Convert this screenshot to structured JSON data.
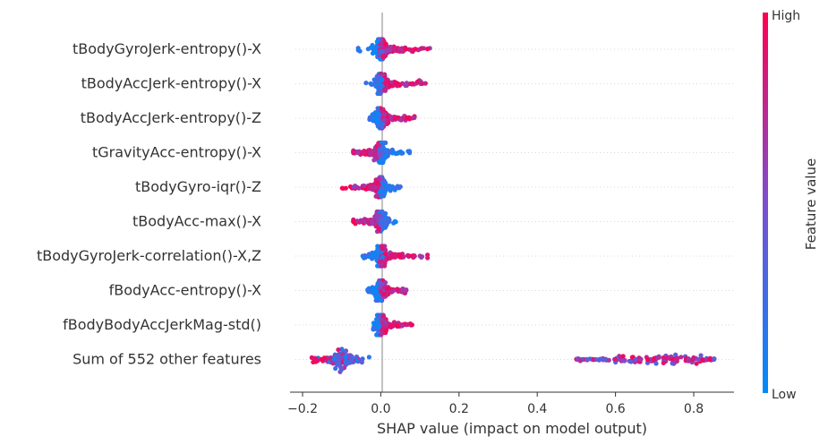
{
  "chart_data": {
    "type": "scatter",
    "subtype": "shap-beeswarm",
    "title": "",
    "xlabel": "SHAP value (impact on model output)",
    "ylabel": "",
    "xlim": [
      -0.235,
      0.9
    ],
    "xticks": [
      -0.2,
      0.0,
      0.2,
      0.4,
      0.6,
      0.8
    ],
    "xtick_labels": [
      "−0.2",
      "0.0",
      "0.2",
      "0.4",
      "0.6",
      "0.8"
    ],
    "grid": false,
    "zero_line": true,
    "colorbar": {
      "label": "Feature value",
      "high_label": "High",
      "low_label": "Low",
      "low_color": "#008bfb",
      "mid_color": "#7c4fd0",
      "high_color": "#ff0051"
    },
    "features": [
      {
        "name": "tBodyGyroJerk-entropy()-X",
        "min": -0.06,
        "max": 0.13,
        "center": 0.0,
        "skew": "high-right"
      },
      {
        "name": "tBodyAccJerk-entropy()-X",
        "min": -0.04,
        "max": 0.125,
        "center": 0.0,
        "skew": "high-right"
      },
      {
        "name": "tBodyAccJerk-entropy()-Z",
        "min": -0.035,
        "max": 0.09,
        "center": 0.0,
        "skew": "high-right"
      },
      {
        "name": "tGravityAcc-entropy()-X",
        "min": -0.07,
        "max": 0.08,
        "center": 0.0,
        "skew": "high-left"
      },
      {
        "name": "tBodyGyro-iqr()-Z",
        "min": -0.1,
        "max": 0.06,
        "center": 0.0,
        "skew": "high-left"
      },
      {
        "name": "tBodyAcc-max()-X",
        "min": -0.07,
        "max": 0.04,
        "center": 0.0,
        "skew": "high-left"
      },
      {
        "name": "tBodyGyroJerk-correlation()-X,Z",
        "min": -0.05,
        "max": 0.12,
        "center": 0.0,
        "skew": "high-right"
      },
      {
        "name": "fBodyAcc-entropy()-X",
        "min": -0.035,
        "max": 0.065,
        "center": 0.0,
        "skew": "high-right"
      },
      {
        "name": "fBodyBodyAccJerkMag-std()",
        "min": -0.025,
        "max": 0.08,
        "center": 0.0,
        "skew": "high-right"
      },
      {
        "name": "Sum of 552 other features",
        "min": -0.185,
        "max": 0.855,
        "center": -0.1,
        "skew": "bimodal"
      }
    ]
  }
}
